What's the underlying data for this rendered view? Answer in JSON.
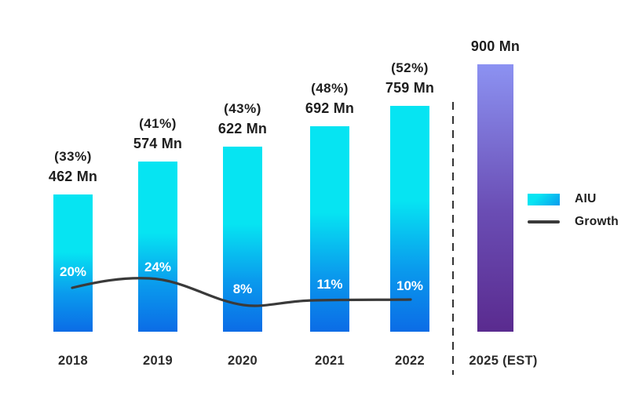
{
  "chart_data": {
    "type": "bar",
    "title": "",
    "categories": [
      "2018",
      "2019",
      "2020",
      "2021",
      "2022",
      "2025 (EST)"
    ],
    "series": [
      {
        "name": "AIU",
        "unit": "Mn",
        "type": "bar",
        "values": [
          462,
          574,
          622,
          692,
          759,
          900
        ]
      },
      {
        "name": "Growth",
        "unit": "%",
        "type": "line",
        "values": [
          20,
          24,
          8,
          11,
          10,
          null
        ]
      }
    ],
    "value_labels": [
      "462 Mn",
      "574 Mn",
      "622 Mn",
      "692 Mn",
      "759 Mn",
      "900 Mn"
    ],
    "share_labels": [
      "(33%)",
      "(41%)",
      "(43%)",
      "(48%)",
      "(52%)",
      ""
    ],
    "growth_labels": [
      "20%",
      "24%",
      "8%",
      "11%",
      "10%",
      ""
    ],
    "ylim": [
      0,
      900
    ],
    "grid": false,
    "legend_position": "right",
    "estimate_category": "2025 (EST)"
  },
  "bars": [
    {
      "year": "2018",
      "share_label": "(33%)",
      "value_label": "462 Mn",
      "growth_label": "20%"
    },
    {
      "year": "2019",
      "share_label": "(41%)",
      "value_label": "574 Mn",
      "growth_label": "24%"
    },
    {
      "year": "2020",
      "share_label": "(43%)",
      "value_label": "622 Mn",
      "growth_label": "8%"
    },
    {
      "year": "2021",
      "share_label": "(48%)",
      "value_label": "692 Mn",
      "growth_label": "11%"
    },
    {
      "year": "2022",
      "share_label": "(52%)",
      "value_label": "759 Mn",
      "growth_label": "10%"
    },
    {
      "year": "2025 (EST)",
      "share_label": "",
      "value_label": "900 Mn",
      "growth_label": ""
    }
  ],
  "legend": {
    "aiu_label": "AIU",
    "growth_label": "Growth"
  },
  "colors": {
    "bar_gradient_top": "#06E4F2",
    "bar_gradient_mid": "#0A9BED",
    "bar_gradient_bottom": "#0B6CE6",
    "est_bar_gradient_top": "#8C92F2",
    "est_bar_gradient_mid": "#6A4DB4",
    "est_bar_gradient_bottom": "#5A2B8F",
    "growth_line": "#3A3A3A",
    "text": "#1E1E1E",
    "divider": "#333333",
    "background": "#FFFFFF"
  }
}
